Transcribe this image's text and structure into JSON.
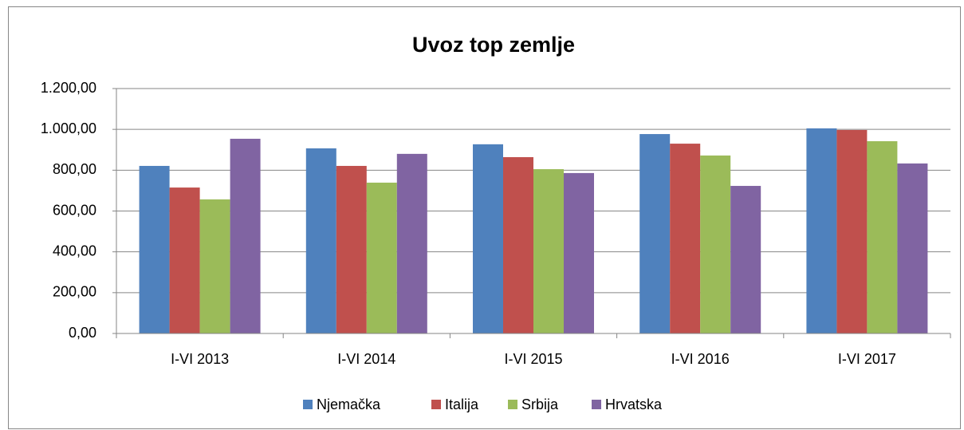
{
  "chart_data": {
    "type": "bar",
    "title": "Uvoz top zemlje",
    "categories": [
      "I-VI 2013",
      "I-VI 2014",
      "I-VI 2015",
      "I-VI 2016",
      "I-VI 2017"
    ],
    "series": [
      {
        "name": "Njemačka",
        "color": "#4f81bd",
        "values": [
          821,
          907,
          927,
          977,
          1005
        ]
      },
      {
        "name": "Italija",
        "color": "#c0504d",
        "values": [
          715,
          821,
          864,
          930,
          997
        ]
      },
      {
        "name": "Srbija",
        "color": "#9bbb59",
        "values": [
          657,
          739,
          805,
          872,
          942
        ]
      },
      {
        "name": "Hrvatska",
        "color": "#8064a2",
        "values": [
          954,
          880,
          786,
          723,
          833
        ]
      }
    ],
    "ylim": [
      0,
      1200
    ],
    "yticks": [
      {
        "value": 0,
        "label": "0,00"
      },
      {
        "value": 200,
        "label": "200,00"
      },
      {
        "value": 400,
        "label": "400,00"
      },
      {
        "value": 600,
        "label": "600,00"
      },
      {
        "value": 800,
        "label": "800,00"
      },
      {
        "value": 1000,
        "label": "1.000,00"
      },
      {
        "value": 1200,
        "label": "1.200,00"
      }
    ],
    "grid": true,
    "legend": "bottom"
  }
}
